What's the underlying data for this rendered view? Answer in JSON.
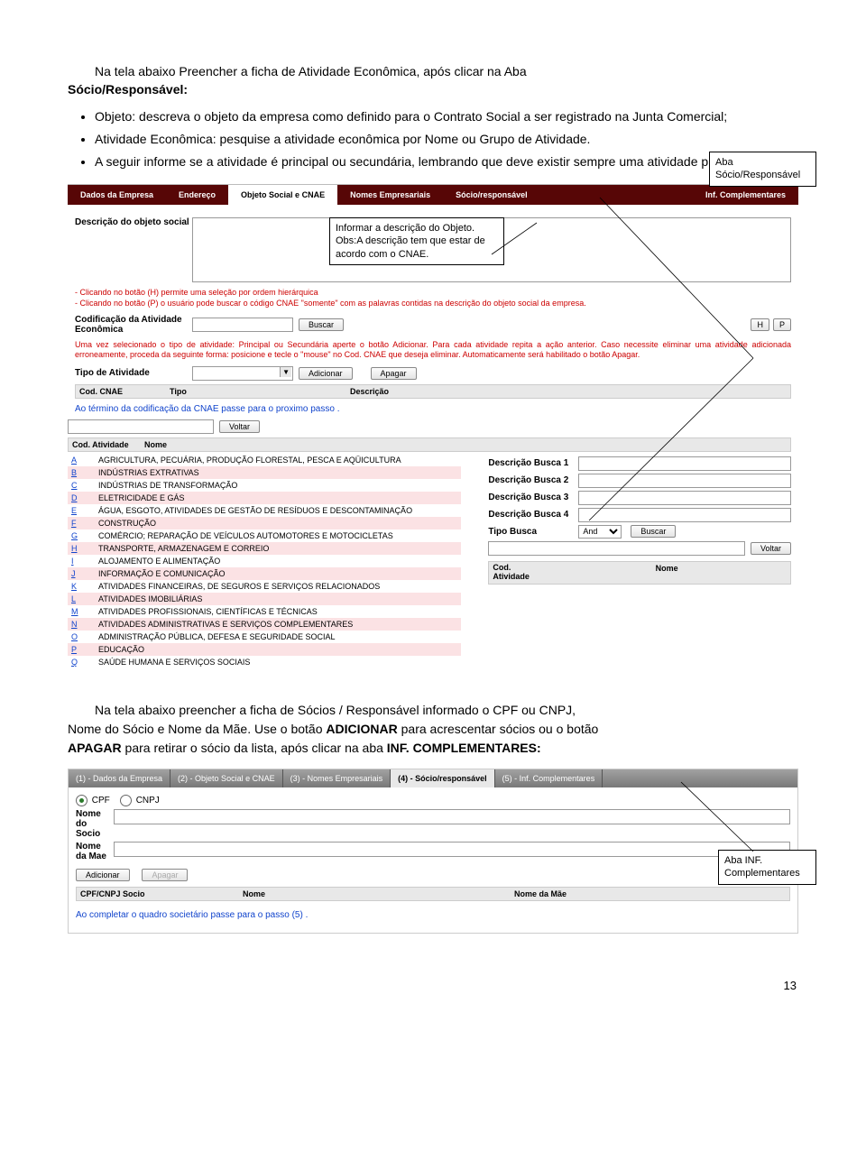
{
  "intro": {
    "title_line": "Na tela abaixo Preencher a ficha de Atividade Econômica, após clicar na Aba",
    "title_line2": "Sócio/Responsável:"
  },
  "bullets": [
    "Objeto: descreva o objeto da empresa como definido para o Contrato Social a ser registrado na Junta Comercial;",
    "Atividade Econômica: pesquise a atividade econômica por Nome ou Grupo de Atividade.",
    "A seguir informe se a atividade é principal ou secundária, lembrando que deve existir sempre uma atividade principal."
  ],
  "callout_aba1": {
    "l1": "Aba",
    "l2": "Sócio/Responsável"
  },
  "callout_obj": {
    "l1": "Informar a descrição do Objeto.",
    "l2": "Obs:A descrição tem que estar de",
    "l3": "acordo com o CNAE."
  },
  "tabs": [
    "Dados da Empresa",
    "Endereço",
    "Objeto Social e CNAE",
    "Nomes Empresariais",
    "Sócio/responsável",
    "Inf. Complementares"
  ],
  "desc_label": "Descrição do objeto social",
  "red1": "- Clicando no botão (H) permite uma seleção por ordem hierárquica\n- Clicando no botão (P) o usuário pode buscar o código CNAE \"somente\" com as palavras contidas na descrição do objeto social da empresa.",
  "codif_label": "Codificação da Atividade Econômica",
  "buscar": "Buscar",
  "h": "H",
  "p": "P",
  "red2": "Uma vez selecionado o tipo de atividade: Principal ou Secundária aperte o botão Adicionar. Para cada atividade repita a ação anterior. Caso necessite eliminar uma atividade adicionada erroneamente, proceda da seguinte forma: posicione e tecle o \"mouse\" no Cod. CNAE que deseja eliminar. Automaticamente será habilitado o botão Apagar.",
  "tipo_label": "Tipo de Atividade",
  "adicionar": "Adicionar",
  "apagar": "Apagar",
  "th_cod": "Cod. CNAE",
  "th_tipo": "Tipo",
  "th_desc": "Descrição",
  "blue_step": "Ao término da codificação da CNAE passe para o proximo passo .",
  "voltar": "Voltar",
  "th_codat": "Cod. Atividade",
  "th_nome": "Nome",
  "atividades": [
    [
      "A",
      "AGRICULTURA, PECUÁRIA, PRODUÇÃO FLORESTAL, PESCA E AQÜICULTURA"
    ],
    [
      "B",
      "INDÚSTRIAS EXTRATIVAS"
    ],
    [
      "C",
      "INDÚSTRIAS DE TRANSFORMAÇÃO"
    ],
    [
      "D",
      "ELETRICIDADE E GÁS"
    ],
    [
      "E",
      "ÁGUA, ESGOTO, ATIVIDADES DE GESTÃO DE RESÍDUOS E DESCONTAMINAÇÃO"
    ],
    [
      "F",
      "CONSTRUÇÃO"
    ],
    [
      "G",
      "COMÉRCIO; REPARAÇÃO DE VEÍCULOS AUTOMOTORES E MOTOCICLETAS"
    ],
    [
      "H",
      "TRANSPORTE, ARMAZENAGEM E CORREIO"
    ],
    [
      "I",
      "ALOJAMENTO E ALIMENTAÇÃO"
    ],
    [
      "J",
      "INFORMAÇÃO E COMUNICAÇÃO"
    ],
    [
      "K",
      "ATIVIDADES FINANCEIRAS, DE SEGUROS E SERVIÇOS RELACIONADOS"
    ],
    [
      "L",
      "ATIVIDADES IMOBILIÁRIAS"
    ],
    [
      "M",
      "ATIVIDADES PROFISSIONAIS, CIENTÍFICAS E TÉCNICAS"
    ],
    [
      "N",
      "ATIVIDADES ADMINISTRATIVAS E SERVIÇOS COMPLEMENTARES"
    ],
    [
      "O",
      "ADMINISTRAÇÃO PÚBLICA, DEFESA E SEGURIDADE SOCIAL"
    ],
    [
      "P",
      "EDUCAÇÃO"
    ],
    [
      "Q",
      "SAÚDE HUMANA E SERVIÇOS SOCIAIS"
    ]
  ],
  "busca": {
    "d1": "Descrição Busca 1",
    "d2": "Descrição Busca 2",
    "d3": "Descrição Busca 3",
    "d4": "Descrição Busca 4",
    "tipo": "Tipo Busca",
    "and": "And",
    "codat": "Cod. Atividade",
    "nome": "Nome"
  },
  "para2": {
    "l1": "Na tela abaixo preencher a ficha de Sócios / Responsável informado o CPF ou CNPJ,",
    "l2": "Nome do Sócio e Nome da Mãe. Use o botão ",
    "b1": "ADICIONAR",
    "l3": " para acrescentar sócios ou o botão",
    "l4": "APAGAR",
    "l5": " para retirar o sócio da lista, após clicar na aba ",
    "b2": "INF. COMPLEMENTARES:"
  },
  "tabs2": [
    "(1) - Dados da Empresa",
    "(2) - Objeto Social e CNAE",
    "(3) - Nomes Empresariais",
    "(4) - Sócio/responsável",
    "(5) - Inf. Complementares"
  ],
  "form2": {
    "cpf": "CPF",
    "cnpj": "CNPJ",
    "nome_socio": "Nome do Socio",
    "nome_mae": "Nome da Mae",
    "th1": "CPF/CNPJ Socio",
    "th2": "Nome",
    "th3": "Nome da Mãe"
  },
  "blue2": "Ao completar o quadro societário passe para o passo (5) .",
  "callout_aba2": {
    "l1": "Aba INF.",
    "l2": "Complementares"
  },
  "pagenum": "13"
}
